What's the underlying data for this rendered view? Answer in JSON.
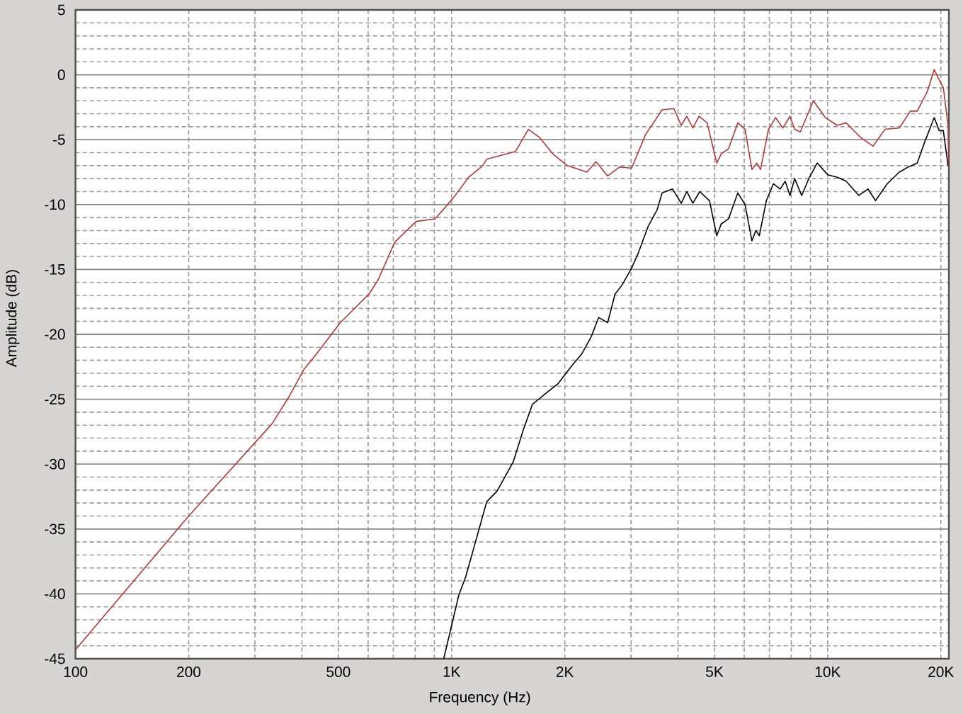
{
  "chart_data": {
    "type": "line",
    "xlabel": "Frequency (Hz)",
    "ylabel": "Amplitude (dB)",
    "log": "x",
    "grid": true,
    "xlim": [
      100,
      21000
    ],
    "ylim": [
      -45,
      5
    ],
    "xticks": [
      100,
      200,
      {
        "value": 300,
        "label": null
      },
      {
        "value": 400,
        "label": null
      },
      500,
      {
        "value": 600,
        "label": null
      },
      {
        "value": 700,
        "label": null
      },
      {
        "value": 800,
        "label": null
      },
      {
        "value": 900,
        "label": null
      },
      {
        "value": 1000,
        "label": "1K"
      },
      {
        "value": 2000,
        "label": "2K"
      },
      {
        "value": 3000,
        "label": null
      },
      {
        "value": 4000,
        "label": null
      },
      {
        "value": 5000,
        "label": "5K"
      },
      {
        "value": 6000,
        "label": null
      },
      {
        "value": 7000,
        "label": null
      },
      {
        "value": 8000,
        "label": null
      },
      {
        "value": 9000,
        "label": null
      },
      {
        "value": 10000,
        "label": "10K"
      },
      {
        "value": 20000,
        "label": "20K"
      }
    ],
    "yticks": [
      -45,
      {
        "value": -44,
        "label": null
      },
      {
        "value": -43,
        "label": null
      },
      {
        "value": -42,
        "label": null
      },
      {
        "value": -41,
        "label": null
      },
      -40,
      {
        "value": -39,
        "label": null
      },
      {
        "value": -38,
        "label": null
      },
      {
        "value": -37,
        "label": null
      },
      {
        "value": -36,
        "label": null
      },
      -35,
      {
        "value": -34,
        "label": null
      },
      {
        "value": -33,
        "label": null
      },
      {
        "value": -32,
        "label": null
      },
      {
        "value": -31,
        "label": null
      },
      -30,
      {
        "value": -29,
        "label": null
      },
      {
        "value": -28,
        "label": null
      },
      {
        "value": -27,
        "label": null
      },
      {
        "value": -26,
        "label": null
      },
      -25,
      {
        "value": -24,
        "label": null
      },
      {
        "value": -23,
        "label": null
      },
      {
        "value": -22,
        "label": null
      },
      {
        "value": -21,
        "label": null
      },
      -20,
      {
        "value": -19,
        "label": null
      },
      {
        "value": -18,
        "label": null
      },
      {
        "value": -17,
        "label": null
      },
      {
        "value": -16,
        "label": null
      },
      -15,
      {
        "value": -14,
        "label": null
      },
      {
        "value": -13,
        "label": null
      },
      {
        "value": -12,
        "label": null
      },
      {
        "value": -11,
        "label": null
      },
      -10,
      {
        "value": -9,
        "label": null
      },
      {
        "value": -8,
        "label": null
      },
      {
        "value": -7,
        "label": null
      },
      {
        "value": -6,
        "label": null
      },
      -5,
      {
        "value": -4,
        "label": null
      },
      {
        "value": -3,
        "label": null
      },
      {
        "value": -2,
        "label": null
      },
      {
        "value": -1,
        "label": null
      },
      0,
      {
        "value": 1,
        "label": null
      },
      {
        "value": 2,
        "label": null
      },
      {
        "value": 3,
        "label": null
      },
      {
        "value": 4,
        "label": null
      },
      5
    ],
    "series": [
      {
        "color": "#b03a3a",
        "x": [
          100,
          200,
          333,
          368,
          405,
          435,
          506,
          603,
          638,
          706,
          805,
          904,
          1010,
          1110,
          1210,
          1240,
          1400,
          1480,
          1600,
          1710,
          1860,
          2030,
          2290,
          2420,
          2600,
          2800,
          3010,
          3280,
          3630,
          3900,
          4080,
          4220,
          4380,
          4550,
          4780,
          5070,
          5210,
          5450,
          5770,
          6030,
          6290,
          6480,
          6630,
          6960,
          7270,
          7600,
          7940,
          8170,
          8460,
          9160,
          9860,
          10600,
          11200,
          12200,
          13200,
          14200,
          15500,
          16600,
          17300,
          18400,
          19200,
          19800,
          20300,
          20900,
          21000
        ],
        "values": [
          -44.3,
          -34.0,
          -26.9,
          -24.9,
          -22.7,
          -21.6,
          -19.1,
          -16.9,
          -15.8,
          -12.9,
          -11.3,
          -11.1,
          -9.5,
          -7.9,
          -7.0,
          -6.5,
          -6.1,
          -5.9,
          -4.2,
          -4.8,
          -6.1,
          -7.0,
          -7.5,
          -6.7,
          -7.8,
          -7.1,
          -7.2,
          -4.6,
          -2.7,
          -2.6,
          -3.9,
          -3.2,
          -4.1,
          -3.2,
          -3.7,
          -6.8,
          -6.1,
          -5.7,
          -3.7,
          -4.2,
          -7.3,
          -6.8,
          -7.3,
          -4.2,
          -3.3,
          -4.1,
          -3.2,
          -4.2,
          -4.4,
          -2.0,
          -3.3,
          -3.9,
          -3.7,
          -4.8,
          -5.5,
          -4.2,
          -4.1,
          -2.8,
          -2.8,
          -1.3,
          0.4,
          -0.4,
          -1.0,
          -3.9,
          -7.1
        ]
      },
      {
        "color": "#000000",
        "x": [
          953,
          1045,
          1090,
          1210,
          1240,
          1320,
          1460,
          1550,
          1640,
          1790,
          1920,
          2090,
          2220,
          2350,
          2460,
          2600,
          2720,
          2840,
          3010,
          3140,
          3330,
          3520,
          3630,
          3870,
          4080,
          4220,
          4380,
          4570,
          4850,
          5070,
          5210,
          5450,
          5770,
          6030,
          6290,
          6440,
          6580,
          6870,
          7170,
          7480,
          7710,
          7940,
          8170,
          8530,
          8910,
          9380,
          10000,
          10600,
          11200,
          12100,
          12800,
          13400,
          14400,
          15500,
          16400,
          17300,
          18100,
          19200,
          19800,
          20300,
          20900
        ],
        "values": [
          -45.0,
          -40.1,
          -38.7,
          -34.0,
          -32.9,
          -32.1,
          -29.8,
          -27.4,
          -25.4,
          -24.5,
          -23.8,
          -22.4,
          -21.5,
          -20.2,
          -18.7,
          -19.1,
          -16.9,
          -16.2,
          -14.9,
          -13.7,
          -11.7,
          -10.4,
          -9.1,
          -8.8,
          -9.9,
          -9.0,
          -9.9,
          -9.0,
          -9.7,
          -12.4,
          -11.5,
          -11.1,
          -9.1,
          -10.0,
          -12.8,
          -12.0,
          -12.4,
          -9.7,
          -8.4,
          -8.8,
          -8.2,
          -9.3,
          -8.0,
          -9.3,
          -8.0,
          -6.8,
          -7.7,
          -7.9,
          -8.2,
          -9.3,
          -8.8,
          -9.7,
          -8.4,
          -7.5,
          -7.1,
          -6.8,
          -5.2,
          -3.3,
          -4.3,
          -4.3,
          -7.0
        ]
      }
    ]
  }
}
